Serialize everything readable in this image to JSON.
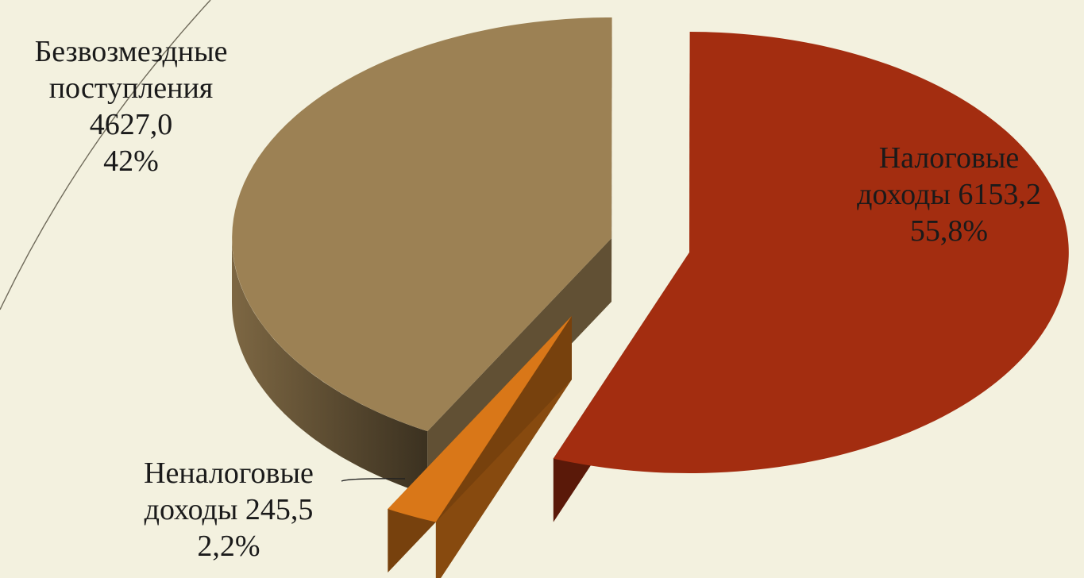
{
  "chart_data": {
    "type": "pie",
    "style": "3d-exploded",
    "slices": [
      {
        "name": "Безвозмездные поступления",
        "value": 4627.0,
        "value_label": "4627,0",
        "percent": 42,
        "percent_label": "42%",
        "color": "#9c8154"
      },
      {
        "name": "Налоговые доходы",
        "value": 6153.2,
        "value_label": "6153,2",
        "percent": 55.8,
        "percent_label": "55,8%",
        "color": "#a32d10"
      },
      {
        "name": "Неналоговые доходы",
        "value": 245.5,
        "value_label": "245,5",
        "percent": 2.2,
        "percent_label": "2,2%",
        "color": "#d97718"
      }
    ]
  },
  "labels": {
    "a": {
      "line1": "Безвозмездные",
      "line2": "поступления",
      "line3": "4627,0",
      "line4": "42%"
    },
    "b": {
      "line1": "Налоговые",
      "line2": "доходы 6153,2",
      "line3": "55,8%"
    },
    "c": {
      "line1": "Неналоговые",
      "line2": "доходы  245,5",
      "line3": "2,2%"
    }
  },
  "colors": {
    "background": "#f3f1df",
    "decor_line": "#6f6a5a"
  }
}
